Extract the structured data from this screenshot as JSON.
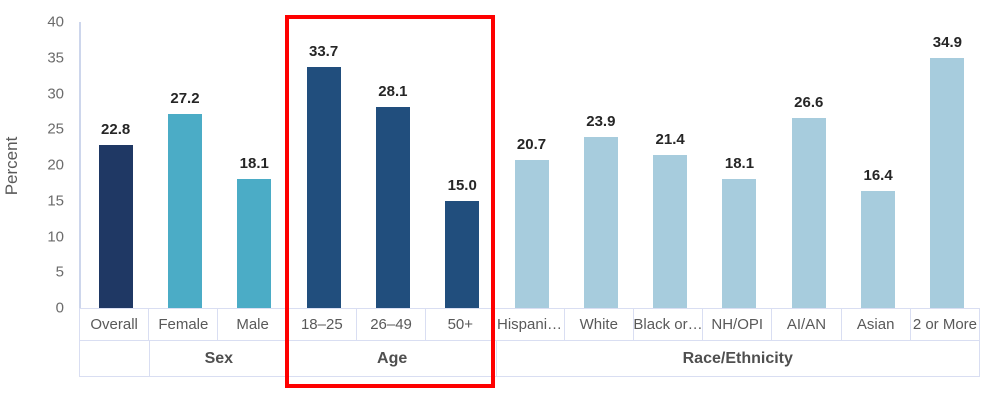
{
  "chart_data": {
    "type": "bar",
    "title": "",
    "xlabel": "",
    "ylabel": "Percent",
    "ylim": [
      0,
      40
    ],
    "yticks": [
      0,
      5,
      10,
      15,
      20,
      25,
      30,
      35,
      40
    ],
    "grid": false,
    "legend": "none",
    "categories": [
      "Overall",
      "Female",
      "Male",
      "18–25",
      "26–49",
      "50+",
      "Hispani…",
      "White",
      "Black or…",
      "NH/OPI",
      "AI/AN",
      "Asian",
      "2 or More"
    ],
    "values": [
      22.8,
      27.2,
      18.1,
      33.7,
      28.1,
      15.0,
      20.7,
      23.9,
      21.4,
      18.1,
      26.6,
      16.4,
      34.9
    ],
    "value_labels": [
      "22.8",
      "27.2",
      "18.1",
      "33.7",
      "28.1",
      "15.0",
      "20.7",
      "23.9",
      "21.4",
      "18.1",
      "26.6",
      "16.4",
      "34.9"
    ],
    "bar_colors": [
      "#1f3864",
      "#4bacc6",
      "#4bacc6",
      "#214e7d",
      "#214e7d",
      "#214e7d",
      "#a7ccdd",
      "#a7ccdd",
      "#a7ccdd",
      "#a7ccdd",
      "#a7ccdd",
      "#a7ccdd",
      "#a7ccdd"
    ],
    "groups": [
      {
        "label": "",
        "span": 1
      },
      {
        "label": "Sex",
        "span": 2
      },
      {
        "label": "Age",
        "span": 3
      },
      {
        "label": "Race/Ethnicity",
        "span": 7
      }
    ],
    "highlight": {
      "group": "Age",
      "color": "#fe0000"
    }
  },
  "colors": {
    "overall_bar": "#1f3864",
    "sex_bars": "#4bacc6",
    "age_bars": "#214e7d",
    "race_bars": "#a7ccdd",
    "highlight_box": "#fe0000",
    "cell_border": "#d9def2",
    "axis_line": "#cdd6ec",
    "axis_text": "#595959",
    "value_text": "#262626"
  }
}
